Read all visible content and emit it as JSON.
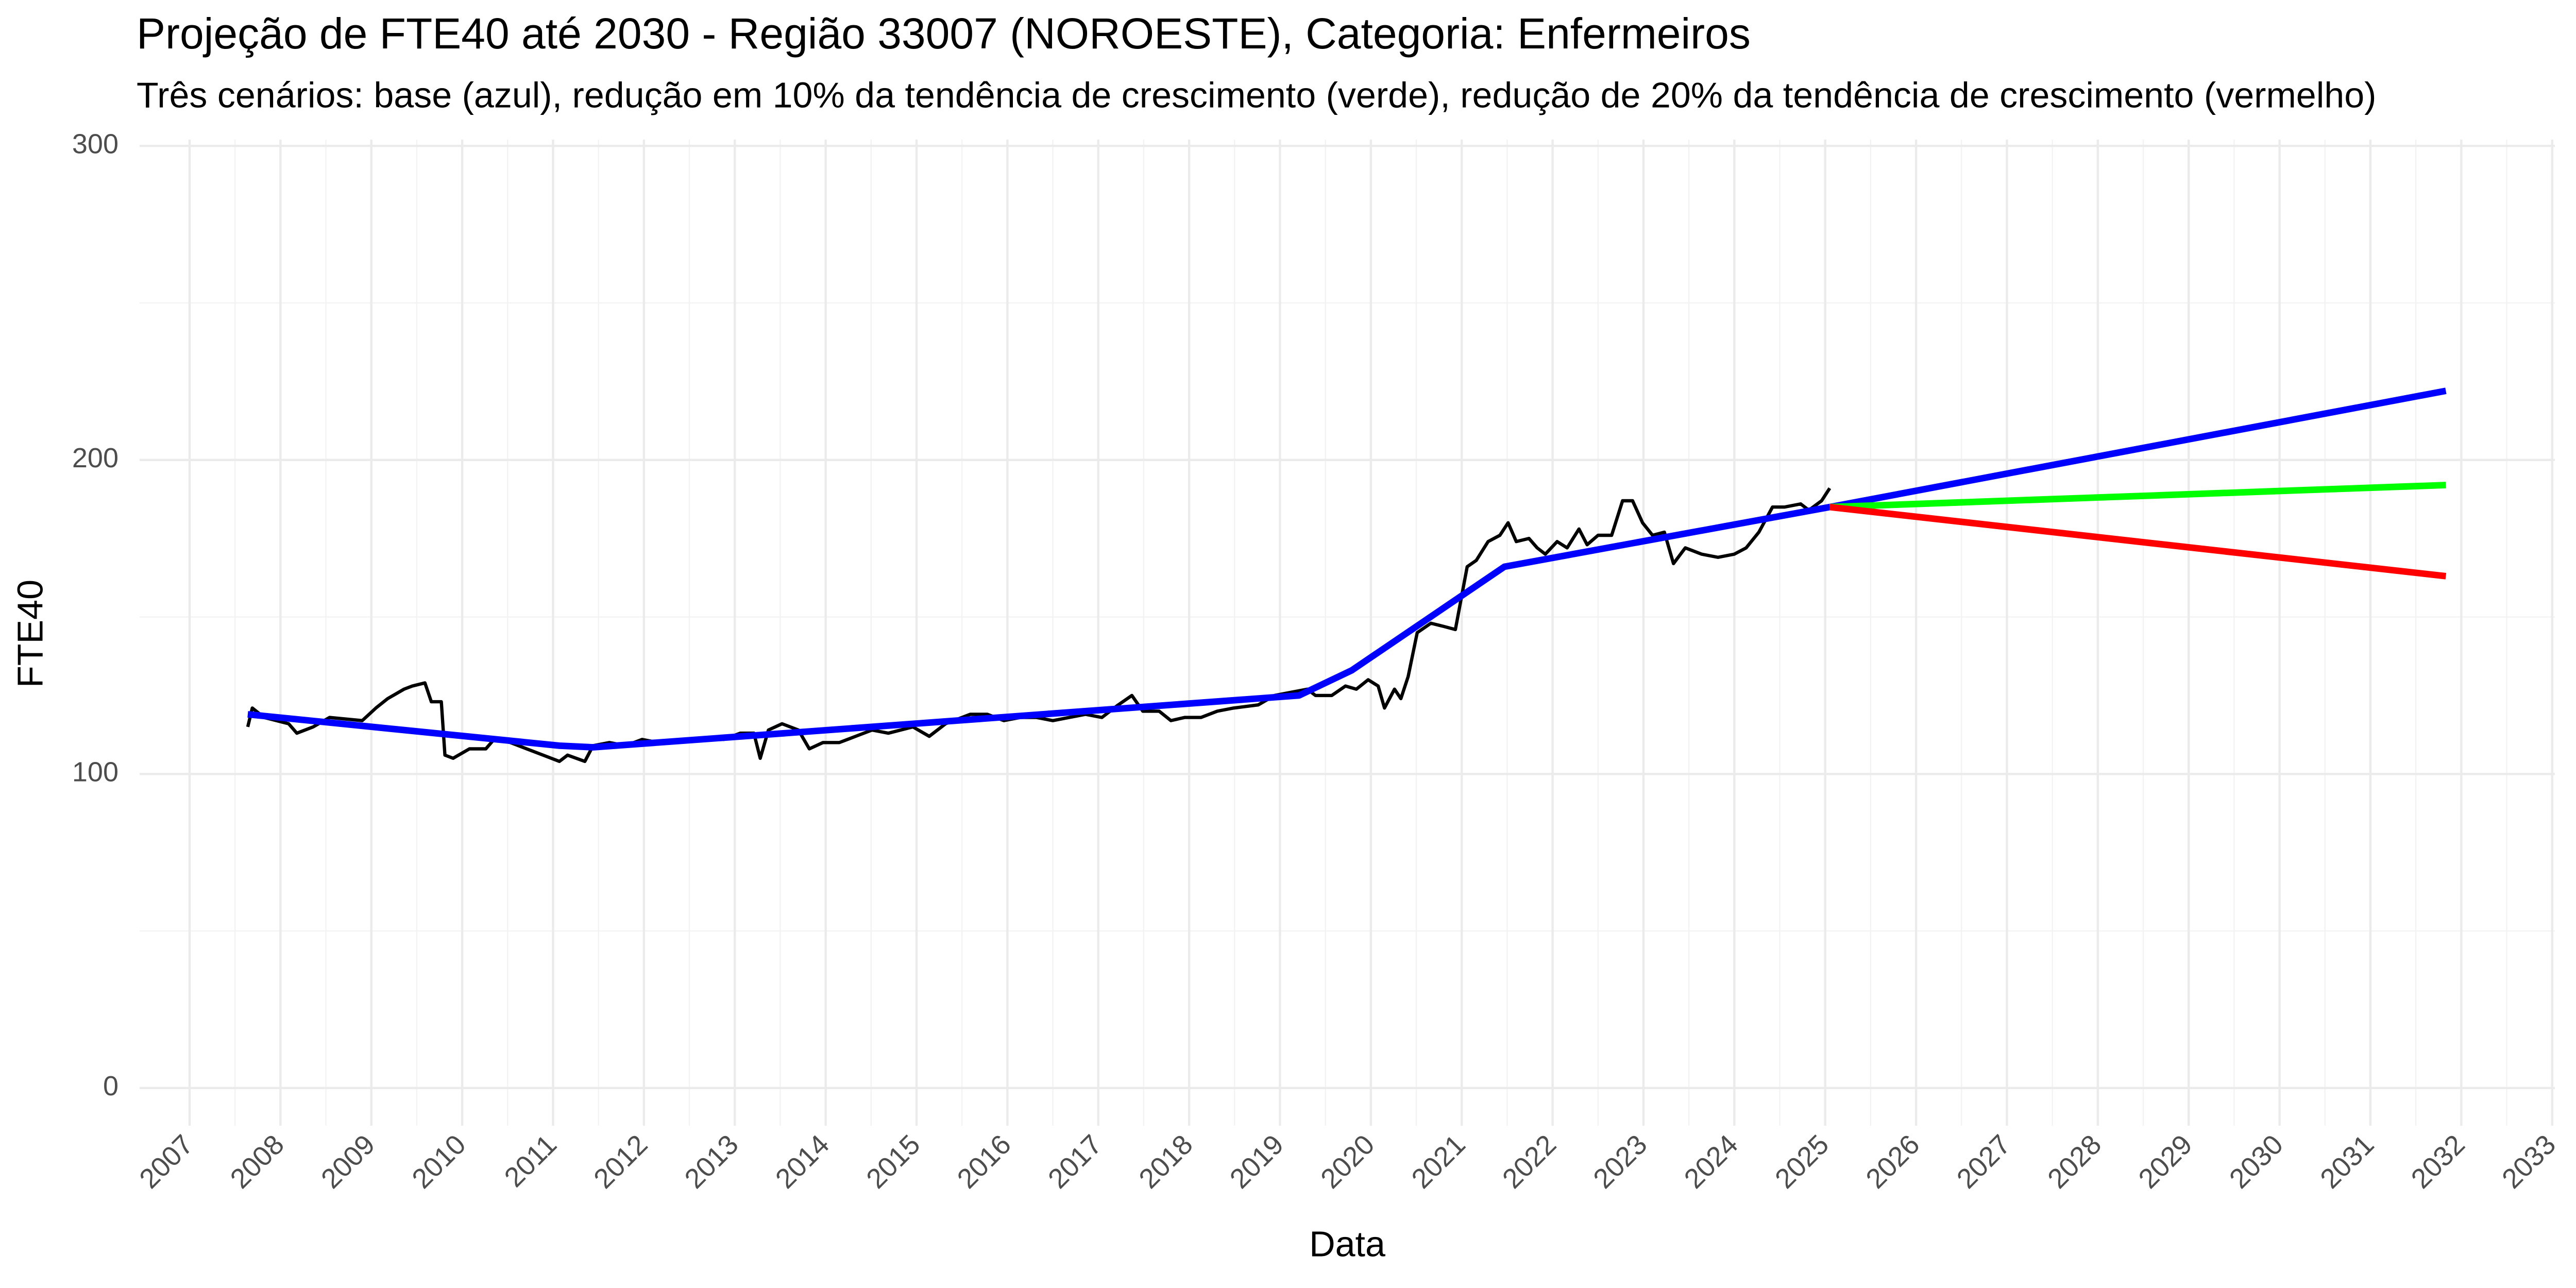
{
  "chart_data": {
    "type": "line",
    "title": "Projeção de FTE40 até 2030 - Região 33007 (NOROESTE), Categoria: Enfermeiros",
    "subtitle": "Três cenários: base (azul), redução em 10% da tendência de crescimento (verde), redução de 20% da tendência de crescimento (vermelho)",
    "xlabel": "Data",
    "ylabel": "FTE40",
    "xlim": [
      2006.45,
      2033.03
    ],
    "xticks": [
      2007,
      2008,
      2009,
      2010,
      2011,
      2012,
      2013,
      2014,
      2015,
      2016,
      2017,
      2018,
      2019,
      2020,
      2021,
      2022,
      2023,
      2024,
      2025,
      2026,
      2027,
      2028,
      2029,
      2030,
      2031,
      2032,
      2033
    ],
    "ylim": [
      -12,
      302
    ],
    "yticks": [
      0,
      100,
      200,
      300
    ],
    "grid": true,
    "minor_grid": true,
    "series": [
      {
        "color": "#000000",
        "width": 2,
        "x": [
          2007.64,
          2007.69,
          2007.82,
          2008.09,
          2008.18,
          2008.36,
          2008.54,
          2008.9,
          2009.05,
          2009.18,
          2009.36,
          2009.45,
          2009.59,
          2009.66,
          2009.77,
          2009.81,
          2009.9,
          2010.08,
          2010.26,
          2010.35,
          2010.53,
          2010.71,
          2010.89,
          2011.07,
          2011.16,
          2011.35,
          2011.44,
          2011.62,
          2011.8,
          2011.98,
          2012.16,
          2012.52,
          2012.88,
          2013.06,
          2013.21,
          2013.28,
          2013.37,
          2013.52,
          2013.7,
          2013.82,
          2013.97,
          2014.15,
          2014.33,
          2014.51,
          2014.69,
          2014.96,
          2015.14,
          2015.32,
          2015.59,
          2015.78,
          2015.96,
          2016.14,
          2016.32,
          2016.5,
          2016.86,
          2017.04,
          2017.22,
          2017.37,
          2017.49,
          2017.67,
          2017.8,
          2017.95,
          2018.13,
          2018.31,
          2018.49,
          2018.76,
          2018.94,
          2019.12,
          2019.3,
          2019.39,
          2019.57,
          2019.72,
          2019.84,
          2019.97,
          2020.08,
          2020.15,
          2020.26,
          2020.33,
          2020.41,
          2020.51,
          2020.66,
          2020.8,
          2020.93,
          2021.06,
          2021.16,
          2021.29,
          2021.42,
          2021.51,
          2021.6,
          2021.74,
          2021.83,
          2021.92,
          2022.05,
          2022.16,
          2022.29,
          2022.38,
          2022.5,
          2022.65,
          2022.77,
          2022.88,
          2022.99,
          2023.1,
          2023.23,
          2023.33,
          2023.46,
          2023.64,
          2023.82,
          2024.0,
          2024.13,
          2024.27,
          2024.42,
          2024.55,
          2024.73,
          2024.82,
          2024.96,
          2025.05
        ],
        "values": [
          115,
          121,
          118,
          116,
          113,
          115,
          118,
          117,
          121,
          124,
          127,
          128,
          129,
          123,
          123,
          106,
          105,
          108,
          108,
          111,
          110,
          108,
          106,
          104,
          106,
          104,
          109,
          110,
          109,
          111,
          110,
          111,
          111,
          113,
          113,
          105,
          114,
          116,
          114,
          108,
          110,
          110,
          112,
          114,
          113,
          115,
          112,
          116,
          119,
          119,
          117,
          118,
          118,
          117,
          119,
          118,
          122,
          125,
          120,
          120,
          117,
          118,
          118,
          120,
          121,
          122,
          125,
          126,
          127,
          125,
          125,
          128,
          127,
          130,
          128,
          121,
          127,
          124,
          131,
          145,
          148,
          147,
          146,
          166,
          168,
          174,
          176,
          180,
          174,
          175,
          172,
          170,
          174,
          172,
          178,
          173,
          176,
          176,
          187,
          187,
          180,
          176,
          177,
          167,
          172,
          170,
          169,
          170,
          172,
          177,
          185,
          185,
          186,
          184,
          187,
          191
        ]
      },
      {
        "color": "#0000ff",
        "width": 4,
        "x": [
          2007.64,
          2011.07,
          2011.44,
          2019.21,
          2019.79,
          2021.47,
          2025.05,
          2031.83
        ],
        "values": [
          119,
          109,
          108.5,
          125,
          133,
          166,
          185,
          222
        ]
      },
      {
        "color": "#00ff00",
        "width": 4,
        "x": [
          2025.05,
          2031.83
        ],
        "values": [
          185,
          192
        ]
      },
      {
        "color": "#ff0000",
        "width": 4,
        "x": [
          2025.05,
          2031.83
        ],
        "values": [
          185,
          163
        ]
      }
    ]
  }
}
